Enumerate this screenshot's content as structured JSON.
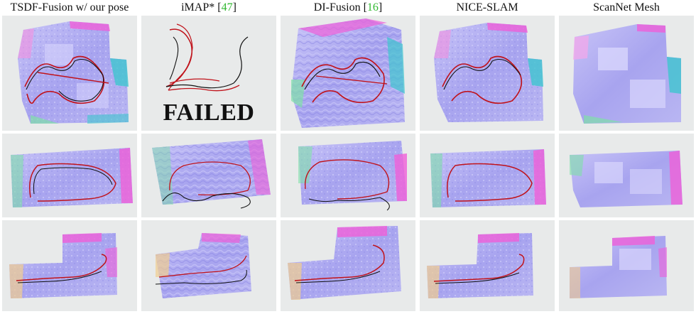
{
  "columns": [
    {
      "label": "TSDF-Fusion w/ our pose",
      "ref": ""
    },
    {
      "label": "iMAP* [",
      "ref": "47",
      "close": "]"
    },
    {
      "label": "DI-Fusion [",
      "ref": "16",
      "close": "]"
    },
    {
      "label": "NICE-SLAM",
      "ref": ""
    },
    {
      "label": "ScanNet Mesh",
      "ref": ""
    }
  ],
  "failed_text": "FAILED",
  "colors": {
    "background": "#e8eaea",
    "mesh_base": "#a9a6f0",
    "trajectory_ours": "#c0121a",
    "trajectory_gt": "#111111",
    "accent_pink": "#ef5fd8",
    "accent_cyan": "#3fc6cf",
    "accent_green": "#7fe0a8",
    "citation": "#2fb82f"
  },
  "icons": [
    "reconstruction-mesh",
    "camera-trajectory"
  ]
}
